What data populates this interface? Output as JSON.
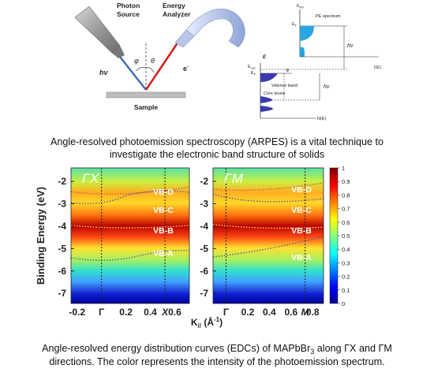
{
  "schematic": {
    "photon_source": [
      "Photon",
      "Source"
    ],
    "energy_analyzer": [
      "Energy",
      "Analyzer"
    ],
    "hv": "hv",
    "phi": "φ",
    "theta": "θ",
    "electron": {
      "base": "e",
      "sup": "-"
    },
    "sample": "Sample"
  },
  "energy_diagram": {
    "e_kin": {
      "base": "E",
      "sub": "kin"
    },
    "pe_spectrum": "PE spectrum",
    "e_f_top": {
      "base": "E",
      "sub": "F"
    },
    "hv_top": "hν",
    "i_e": "I(E)",
    "e_axis": "E",
    "e_vac": {
      "base": "E",
      "sub": "vac"
    },
    "e_f": {
      "base": "E",
      "sub": "F"
    },
    "phi": "Φ",
    "valence_band": "Valence band",
    "hv_bottom": "hν",
    "core_levels": "Core levels",
    "n_e": "N(E)"
  },
  "caption_top": [
    "Angle-resolved photoemission spectroscopy (ARPES) is a vital technique to",
    "investigate the electronic band structure of solids"
  ],
  "figure": {
    "y_label": "Binding Energy (eV)",
    "x_label": {
      "main": "K",
      "sub": "//",
      "open": " (Å",
      "sup": "-1",
      "close": ")"
    },
    "ylim": [
      -1.4,
      -7.45
    ],
    "yticks": [
      -2,
      -3,
      -4,
      -5,
      -6,
      -7
    ],
    "panels": [
      {
        "title": "ΓX",
        "xlim": [
          -0.25,
          0.72
        ],
        "xticks": [
          -0.2,
          {
            "value": 0,
            "label": "Γ"
          },
          0.2,
          0.4,
          {
            "value": 0.52,
            "label": "X"
          },
          0.6
        ],
        "bands": [
          "VB-D",
          "VB-C",
          "VB-B",
          "VB-A"
        ]
      },
      {
        "title": "ΓM",
        "xlim": [
          -0.12,
          0.9
        ],
        "xticks": [
          {
            "value": 0,
            "label": "Γ"
          },
          0.2,
          0.4,
          0.6,
          {
            "value": 0.73,
            "label": "M"
          },
          0.8
        ],
        "bands": [
          "VB-D",
          "VB-C",
          "VB-B",
          "VB-A"
        ]
      }
    ],
    "colorbar": {
      "clim": [
        0,
        1
      ],
      "ticks": [
        1,
        0.9,
        0.8,
        0.7,
        0.6,
        0.5,
        0.4,
        0.3,
        0.2,
        0.1,
        0
      ]
    }
  },
  "caption_bottom": [
    [
      "Angle-resolved energy distribution curves (EDCs) of MAPbBr",
      "3",
      " along ΓX and ΓM"
    ],
    [
      "directions. The color represents the intensity of the photoemission spectrum."
    ]
  ]
}
